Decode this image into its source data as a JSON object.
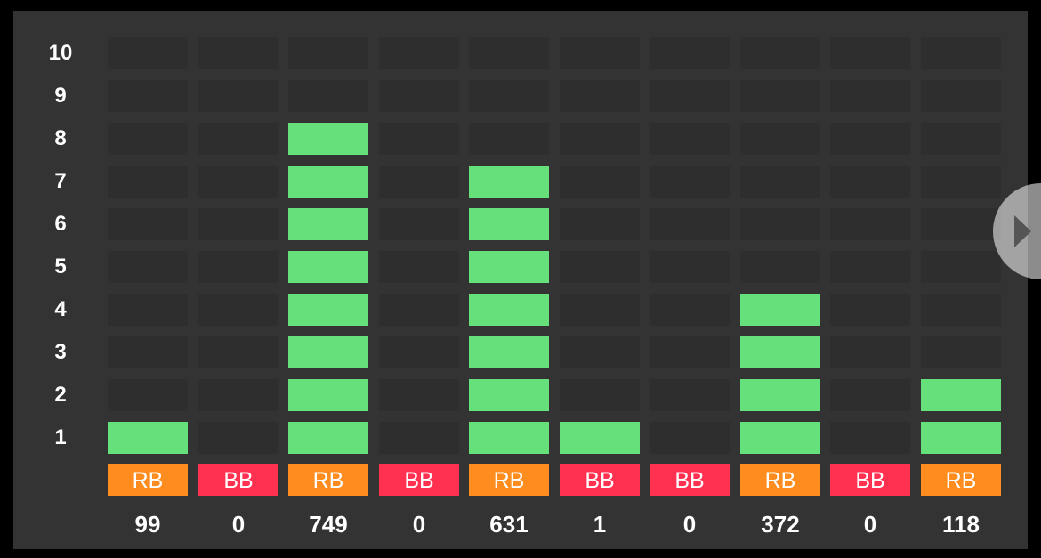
{
  "y_labels": [
    "1",
    "2",
    "3",
    "4",
    "5",
    "6",
    "7",
    "8",
    "9",
    "10"
  ],
  "columns": [
    {
      "type": "RB",
      "count": "99",
      "level": 1
    },
    {
      "type": "BB",
      "count": "0",
      "level": 0
    },
    {
      "type": "RB",
      "count": "749",
      "level": 8
    },
    {
      "type": "BB",
      "count": "0",
      "level": 0
    },
    {
      "type": "RB",
      "count": "631",
      "level": 7
    },
    {
      "type": "BB",
      "count": "1",
      "level": 1
    },
    {
      "type": "BB",
      "count": "0",
      "level": 0
    },
    {
      "type": "RB",
      "count": "372",
      "level": 4
    },
    {
      "type": "BB",
      "count": "0",
      "level": 0
    },
    {
      "type": "RB",
      "count": "118",
      "level": 2
    }
  ],
  "colors": {
    "RB": "#ff8c1e",
    "BB": "#ff3050",
    "bar": "#66e07a"
  }
}
